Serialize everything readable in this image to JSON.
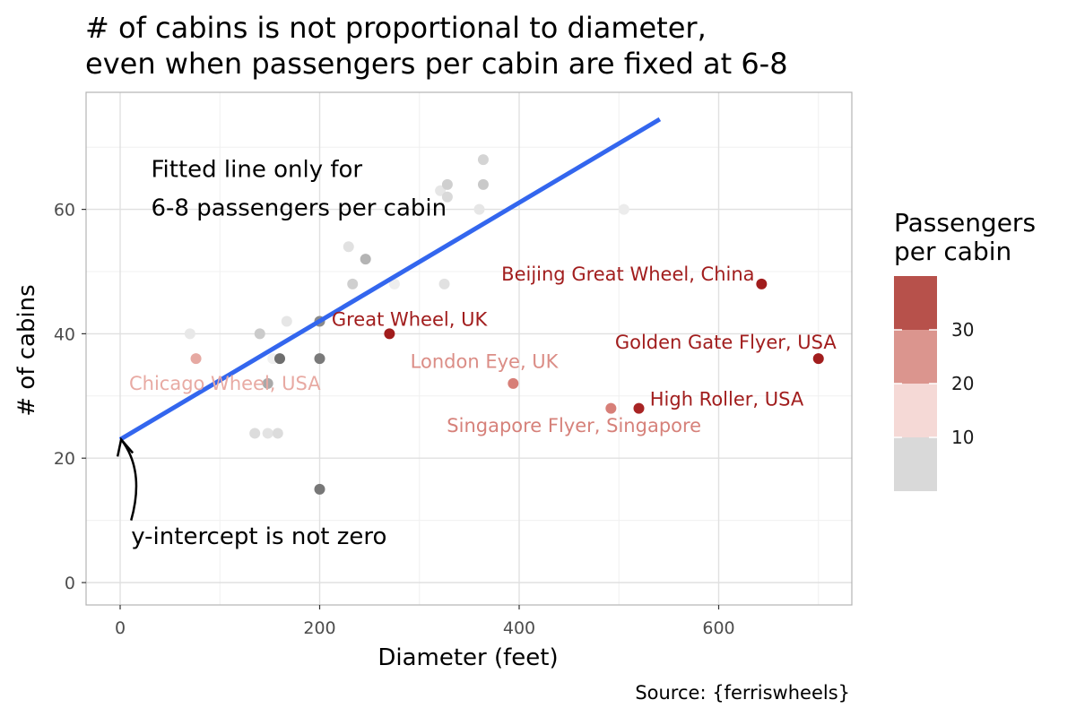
{
  "chart_data": {
    "type": "scatter",
    "title_line1": "# of cabins is not proportional to diameter,",
    "title_line2": "even when passengers per cabin are fixed at 6-8",
    "xlabel": "Diameter (feet)",
    "ylabel": "# of cabins",
    "caption": "Source: {ferriswheels}",
    "xlim": [
      -35,
      735
    ],
    "ylim": [
      -3.5,
      78.5
    ],
    "x_ticks": [
      0,
      200,
      400,
      600
    ],
    "y_ticks": [
      0,
      20,
      40,
      60
    ],
    "x_minor_ticks": [
      100,
      300,
      500,
      700
    ],
    "y_minor_ticks": [
      10,
      30,
      50,
      70
    ],
    "grid": true,
    "legend": {
      "title_line1": "Passengers",
      "title_line2": "per cabin",
      "placement": "right",
      "bins": [
        {
          "color": "#d9d9d9"
        },
        {
          "color": "#f5d9d6"
        },
        {
          "color": "#db958e"
        },
        {
          "color": "#b7514b"
        }
      ],
      "labels": [
        "10",
        "20",
        "30"
      ]
    },
    "fitted_line": {
      "color": "#3366ee",
      "x": [
        0,
        541
      ],
      "y": [
        23,
        74.5
      ]
    },
    "points": [
      {
        "x": 70,
        "y": 40,
        "color": "#e8e8e8"
      },
      {
        "x": 76,
        "y": 36,
        "color": "#e6a9a2"
      },
      {
        "x": 135,
        "y": 24,
        "color": "#dcdcdc"
      },
      {
        "x": 140,
        "y": 40,
        "color": "#cbcbcb"
      },
      {
        "x": 148,
        "y": 24,
        "color": "#e3e3e3"
      },
      {
        "x": 148,
        "y": 32,
        "color": "#a9a9a9"
      },
      {
        "x": 153,
        "y": 36,
        "color": "#f0f0f0"
      },
      {
        "x": 158,
        "y": 24,
        "color": "#dcdcdc"
      },
      {
        "x": 160,
        "y": 36,
        "color": "#6e6e6e"
      },
      {
        "x": 167,
        "y": 42,
        "color": "#e6e6e6"
      },
      {
        "x": 200,
        "y": 15,
        "color": "#777777"
      },
      {
        "x": 200,
        "y": 36,
        "color": "#7a7a7a"
      },
      {
        "x": 200,
        "y": 42,
        "color": "#8a8a8a"
      },
      {
        "x": 229,
        "y": 54,
        "color": "#e1e1e1"
      },
      {
        "x": 233,
        "y": 48,
        "color": "#cfcfcf"
      },
      {
        "x": 246,
        "y": 52,
        "color": "#b4b4b4"
      },
      {
        "x": 270,
        "y": 40,
        "color": "#a11d1d"
      },
      {
        "x": 275,
        "y": 48,
        "color": "#eeeeee"
      },
      {
        "x": 321,
        "y": 63,
        "color": "#e6e6e6"
      },
      {
        "x": 325,
        "y": 48,
        "color": "#e1e1e1"
      },
      {
        "x": 328,
        "y": 62,
        "color": "#d9d9d9"
      },
      {
        "x": 328,
        "y": 64,
        "color": "#cfcfcf"
      },
      {
        "x": 360,
        "y": 60,
        "color": "#e6e6e6"
      },
      {
        "x": 364,
        "y": 64,
        "color": "#c9c9c9"
      },
      {
        "x": 364,
        "y": 68,
        "color": "#d4d4d4"
      },
      {
        "x": 394,
        "y": 32,
        "color": "#d77f78"
      },
      {
        "x": 492,
        "y": 28,
        "color": "#d77f78"
      },
      {
        "x": 505,
        "y": 60,
        "color": "#ececec"
      },
      {
        "x": 520,
        "y": 28,
        "color": "#a82424"
      },
      {
        "x": 643,
        "y": 48,
        "color": "#a11d1d"
      },
      {
        "x": 700,
        "y": 36,
        "color": "#a11d1d"
      }
    ],
    "point_labels": [
      {
        "text": "Chicago Wheel, USA",
        "x": 105,
        "y": 32,
        "anchor": "middle",
        "color": "#e8aaa3"
      },
      {
        "text": "Great Wheel, UK",
        "x": 212,
        "y": 42.3,
        "anchor": "start",
        "color": "#a11d1d"
      },
      {
        "text": "London Eye, UK",
        "x": 365,
        "y": 35.5,
        "anchor": "middle",
        "color": "#db8d86"
      },
      {
        "text": "Beijing Great Wheel, China",
        "x": 636,
        "y": 49.6,
        "anchor": "end",
        "color": "#a11d1d"
      },
      {
        "text": "Golden Gate Flyer, USA",
        "x": 607,
        "y": 38.6,
        "anchor": "middle",
        "color": "#a11d1d"
      },
      {
        "text": "High Roller, USA",
        "x": 531,
        "y": 29.5,
        "anchor": "start",
        "color": "#a11d1d"
      },
      {
        "text": "Singapore Flyer, Singapore",
        "x": 455,
        "y": 25.2,
        "anchor": "middle",
        "color": "#d6817a"
      }
    ],
    "annotations": {
      "fitted_line_note_line1": "Fitted line only for",
      "fitted_line_note_line2": "6-8 passengers per cabin",
      "fitted_note_pos": {
        "x": 31,
        "y1": 66.5,
        "y2": 60.3
      },
      "intercept_note": "y-intercept is not zero",
      "intercept_note_pos": {
        "x": 11,
        "y": 7.5
      },
      "arrow": {
        "from_x": 11,
        "from_y": 10,
        "ctrl_x": 25,
        "ctrl_y": 18,
        "to_x": 1,
        "to_y": 23
      }
    }
  }
}
